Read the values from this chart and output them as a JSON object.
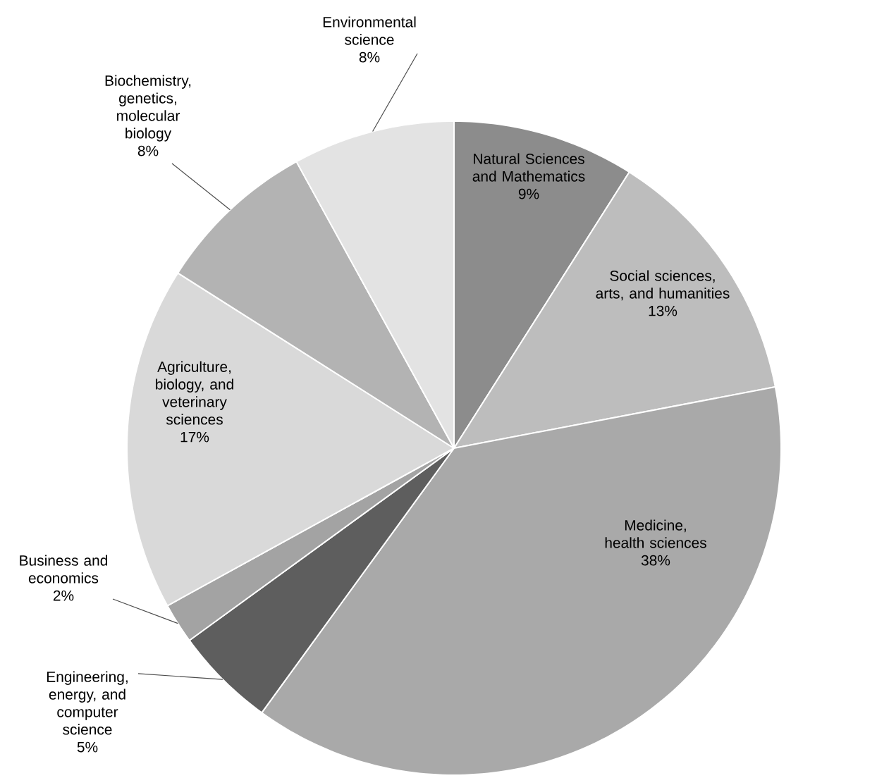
{
  "chart_data": {
    "type": "pie",
    "categories": [
      "Natural Sciences and Mathematics",
      "Social sciences, arts, and humanities",
      "Medicine, health sciences",
      "Engineering, energy, and computer science",
      "Business and economics",
      "Agriculture, biology, and veterinary sciences",
      "Biochemistry, genetics, molecular biology",
      "Environmental science"
    ],
    "values": [
      9,
      13,
      38,
      5,
      2,
      17,
      8,
      8
    ],
    "value_labels": [
      "9%",
      "13%",
      "38%",
      "5%",
      "2%",
      "17%",
      "8%",
      "8%"
    ],
    "colors": [
      "#8c8c8c",
      "#bdbdbd",
      "#a9a9a9",
      "#5e5e5e",
      "#a3a3a3",
      "#d9d9d9",
      "#b3b3b3",
      "#e3e3e3"
    ]
  }
}
